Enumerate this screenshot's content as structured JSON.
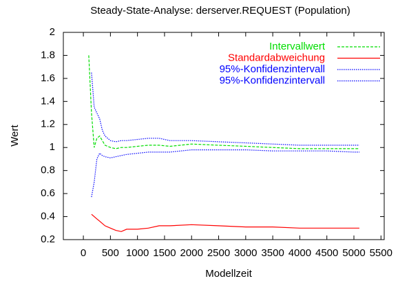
{
  "chart_data": {
    "type": "line",
    "title": "Steady-State-Analyse: derserver.REQUEST (Population)",
    "x_label": "Modellzeit",
    "y_label": "Wert",
    "x": [
      100,
      150,
      200,
      250,
      300,
      350,
      400,
      500,
      600,
      700,
      800,
      1000,
      1200,
      1400,
      1600,
      2000,
      2500,
      3000,
      3500,
      4000,
      4500,
      5000,
      5100
    ],
    "series": [
      {
        "name": "Intervallwert",
        "color": "#00dd00",
        "dash": "dashed",
        "values": [
          1.8,
          1.3,
          1.0,
          1.08,
          1.1,
          1.06,
          1.02,
          1.0,
          0.99,
          1.0,
          1.0,
          1.01,
          1.02,
          1.02,
          1.01,
          1.03,
          1.02,
          1.01,
          1.0,
          0.99,
          0.99,
          0.99,
          0.99
        ]
      },
      {
        "name": "Standardabweichung",
        "color": "#ff0000",
        "dash": "solid",
        "values": [
          null,
          0.42,
          0.4,
          0.38,
          0.36,
          0.34,
          0.32,
          0.3,
          0.28,
          0.27,
          0.29,
          0.29,
          0.3,
          0.32,
          0.32,
          0.33,
          0.32,
          0.31,
          0.31,
          0.3,
          0.3,
          0.3,
          0.3
        ]
      },
      {
        "name": "95%-Konfidenzintervall",
        "color": "#0000ff",
        "dash": "dotted",
        "values": [
          null,
          1.65,
          1.35,
          1.3,
          1.25,
          1.15,
          1.1,
          1.06,
          1.05,
          1.06,
          1.06,
          1.07,
          1.08,
          1.08,
          1.06,
          1.06,
          1.05,
          1.04,
          1.03,
          1.02,
          1.02,
          1.02,
          1.02
        ]
      },
      {
        "name": "95%-Konfidenzintervall",
        "color": "#0000ff",
        "dash": "dotted",
        "values": [
          null,
          0.57,
          0.7,
          0.9,
          0.95,
          0.93,
          0.92,
          0.91,
          0.92,
          0.93,
          0.94,
          0.95,
          0.96,
          0.96,
          0.96,
          0.98,
          0.98,
          0.98,
          0.97,
          0.97,
          0.97,
          0.96,
          0.96
        ]
      }
    ],
    "xlim": [
      -370,
      5560
    ],
    "xticks": [
      0,
      500,
      1000,
      1500,
      2000,
      2500,
      3000,
      3500,
      4000,
      4500,
      5000,
      5500
    ],
    "ylim": [
      0.2,
      2
    ],
    "yticks": [
      0.2,
      0.4,
      0.6,
      0.8,
      1,
      1.2,
      1.4,
      1.6,
      1.8,
      2
    ],
    "legend": "top-right"
  }
}
